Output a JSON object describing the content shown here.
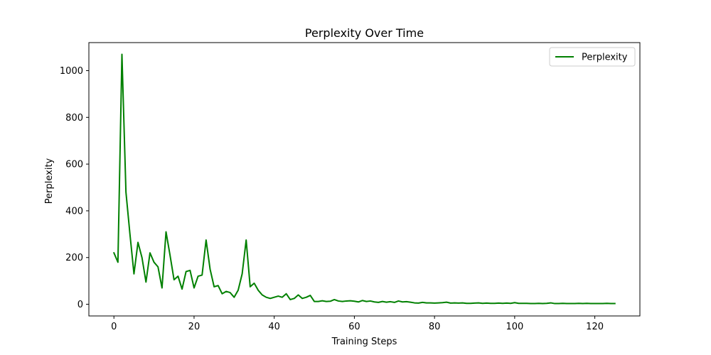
{
  "chart_data": {
    "type": "line",
    "title": "Perplexity Over Time",
    "xlabel": "Training Steps",
    "ylabel": "Perplexity",
    "xlim": [
      -6.25,
      131.25
    ],
    "ylim": [
      -50,
      1120
    ],
    "xticks": [
      0,
      20,
      40,
      60,
      80,
      100,
      120
    ],
    "yticks": [
      0,
      200,
      400,
      600,
      800,
      1000
    ],
    "grid": false,
    "legend_position": "top-right",
    "series": [
      {
        "name": "Perplexity",
        "color": "#008000",
        "x": [
          0,
          1,
          2,
          3,
          4,
          5,
          6,
          7,
          8,
          9,
          10,
          11,
          12,
          13,
          14,
          15,
          16,
          17,
          18,
          19,
          20,
          21,
          22,
          23,
          24,
          25,
          26,
          27,
          28,
          29,
          30,
          31,
          32,
          33,
          34,
          35,
          36,
          37,
          38,
          39,
          40,
          41,
          42,
          43,
          44,
          45,
          46,
          47,
          48,
          49,
          50,
          51,
          52,
          53,
          54,
          55,
          56,
          57,
          58,
          59,
          60,
          61,
          62,
          63,
          64,
          65,
          66,
          67,
          68,
          69,
          70,
          71,
          72,
          73,
          74,
          75,
          76,
          77,
          78,
          79,
          80,
          81,
          82,
          83,
          84,
          85,
          86,
          87,
          88,
          89,
          90,
          91,
          92,
          93,
          94,
          95,
          96,
          97,
          98,
          99,
          100,
          101,
          102,
          103,
          104,
          105,
          106,
          107,
          108,
          109,
          110,
          111,
          112,
          113,
          114,
          115,
          116,
          117,
          118,
          119,
          120,
          121,
          122,
          123,
          124,
          125
        ],
        "y": [
          220,
          180,
          1070,
          480,
          300,
          130,
          265,
          200,
          95,
          220,
          180,
          160,
          70,
          310,
          210,
          105,
          120,
          65,
          140,
          145,
          70,
          120,
          125,
          275,
          150,
          75,
          80,
          45,
          55,
          50,
          30,
          60,
          130,
          275,
          75,
          90,
          60,
          40,
          30,
          25,
          30,
          35,
          30,
          45,
          20,
          25,
          40,
          25,
          30,
          38,
          12,
          12,
          15,
          12,
          13,
          20,
          14,
          12,
          14,
          15,
          13,
          10,
          16,
          12,
          14,
          10,
          8,
          12,
          9,
          11,
          8,
          14,
          10,
          11,
          9,
          6,
          5,
          8,
          6,
          6,
          5,
          6,
          7,
          9,
          5,
          6,
          5,
          6,
          4,
          4,
          5,
          6,
          4,
          5,
          4,
          4,
          5,
          4,
          5,
          4,
          7,
          4,
          4,
          4,
          3,
          3,
          4,
          3,
          4,
          6,
          3,
          3,
          4,
          3,
          3,
          3,
          4,
          3,
          4,
          3,
          3,
          3,
          3,
          4,
          3,
          3
        ]
      }
    ]
  }
}
